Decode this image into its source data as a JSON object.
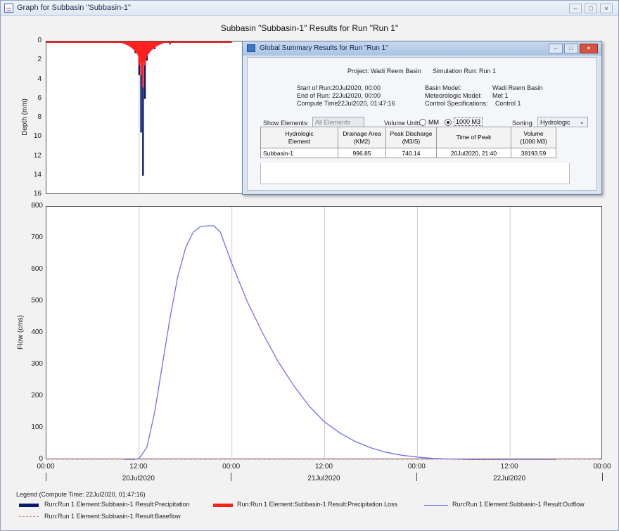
{
  "window": {
    "title": "Graph for Subbasin \"Subbasin-1\"",
    "controls": [
      "–",
      "□",
      "×"
    ]
  },
  "graph_title": "Subbasin \"Subbasin-1\" Results for Run \"Run 1\"",
  "top_plot": {
    "ylabel": "Depth (mm)",
    "yticks": [
      "0",
      "2",
      "4",
      "6",
      "8",
      "10",
      "12",
      "14",
      "16"
    ]
  },
  "bottom_plot": {
    "ylabel": "Flow (cms)",
    "yticks": [
      "800",
      "700",
      "600",
      "500",
      "400",
      "300",
      "200",
      "100",
      "0"
    ]
  },
  "x_axis": {
    "times": [
      "00:00",
      "12:00",
      "00:00",
      "12:00",
      "00:00",
      "12:00",
      "00:00"
    ],
    "dates": [
      "20Jul2020",
      "21Jul2020",
      "22Jul2020"
    ]
  },
  "legend": {
    "title": "Legend (Compute Time: 22Jul2020, 01:47:16)",
    "items": [
      "Run:Run 1 Element:Subbasin-1 Result:Precipitation",
      "Run:Run 1 Element:Subbasin-1 Result:Precipitation Loss",
      "Run:Run 1 Element:Subbasin-1 Result:Outflow",
      "Run:Run 1 Element:Subbasin-1 Result:Baseflow"
    ]
  },
  "colors": {
    "precipitation": "#0a1a6e",
    "precipitation_loss": "#ff2020",
    "outflow": "#6f6ff0",
    "baseflow": "#e08080"
  },
  "dialog": {
    "title": "Global Summary Results for Run \"Run 1\"",
    "project": "Project: Wadi Reem Basin",
    "simulation_run": "Simulation Run: Run 1",
    "start_label": "Start of Run:",
    "start_value": "20Jul2020, 00:00",
    "end_label": "End of Run:",
    "end_value": "22Jul2020, 00:00",
    "compute_label": "Compute Time:",
    "compute_value": "22Jul2020, 01:47:16",
    "basin_label": "Basin Model:",
    "basin_value": "Wadi Reem Basin",
    "met_label": "Meteorologic Model:",
    "met_value": "Met 1",
    "control_label": "Control Specifications:",
    "control_value": "Control 1",
    "show_elements_label": "Show Elements:",
    "show_elements_value": "All Elements",
    "volume_units_label": "Volume Units:",
    "unit_mm": "MM",
    "unit_1000m3": "1000 M3",
    "sorting_label": "Sorting:",
    "sorting_value": "Hydrologic",
    "table": {
      "headers": [
        [
          "Hydrologic",
          "Element"
        ],
        [
          "Drainage Area",
          "(KM2)"
        ],
        [
          "Peak Discharge",
          "(M3/S)"
        ],
        [
          "Time of Peak",
          ""
        ],
        [
          "Volume",
          "(1000 M3)"
        ]
      ],
      "rows": [
        [
          "Subbasin-1",
          "996.85",
          "740.14",
          "20Jul2020, 21:40",
          "38193.59"
        ]
      ]
    }
  },
  "chart_data": [
    {
      "type": "bar",
      "ylabel": "Depth (mm)",
      "ylim": [
        16,
        0
      ],
      "series": [
        {
          "name": "Run:Run 1 Element:Subbasin-1 Result:Precipitation",
          "x_hours": [
            10,
            11,
            11.5,
            12,
            12.25,
            12.5,
            12.75,
            13,
            14,
            16
          ],
          "values": [
            0.2,
            0.6,
            1.2,
            3.5,
            9.5,
            14.0,
            6.0,
            2.0,
            0.8,
            0.3
          ]
        },
        {
          "name": "Run:Run 1 Element:Subbasin-1 Result:Precipitation Loss",
          "x_hours": [
            10,
            11,
            11.5,
            12,
            12.25,
            12.5,
            12.75,
            13,
            14,
            16
          ],
          "values": [
            0.2,
            0.5,
            1.0,
            2.5,
            3.5,
            4.8,
            2.5,
            1.5,
            0.6,
            0.2
          ]
        }
      ]
    },
    {
      "type": "line",
      "ylabel": "Flow (cms)",
      "ylim": [
        0,
        800
      ],
      "xlim_hours": [
        0,
        72
      ],
      "series": [
        {
          "name": "Run:Run 1 Element:Subbasin-1 Result:Outflow",
          "x_hours": [
            10,
            11,
            12,
            13,
            14,
            15,
            16,
            17,
            18,
            19,
            20,
            21,
            21.67,
            22.5,
            24,
            26,
            28,
            30,
            32,
            34,
            36,
            38,
            40,
            42,
            44,
            46,
            48,
            50,
            52,
            54,
            56,
            58,
            60,
            62,
            64,
            66
          ],
          "values": [
            0,
            0,
            5,
            40,
            150,
            300,
            450,
            580,
            670,
            720,
            738,
            740,
            740,
            720,
            620,
            500,
            400,
            310,
            235,
            170,
            120,
            85,
            58,
            38,
            24,
            15,
            9,
            5,
            3,
            2,
            1,
            0.5,
            0,
            0,
            0,
            0
          ]
        },
        {
          "name": "Run:Run 1 Element:Subbasin-1 Result:Baseflow",
          "x_hours": [
            0,
            72
          ],
          "values": [
            0,
            0
          ]
        }
      ]
    }
  ]
}
